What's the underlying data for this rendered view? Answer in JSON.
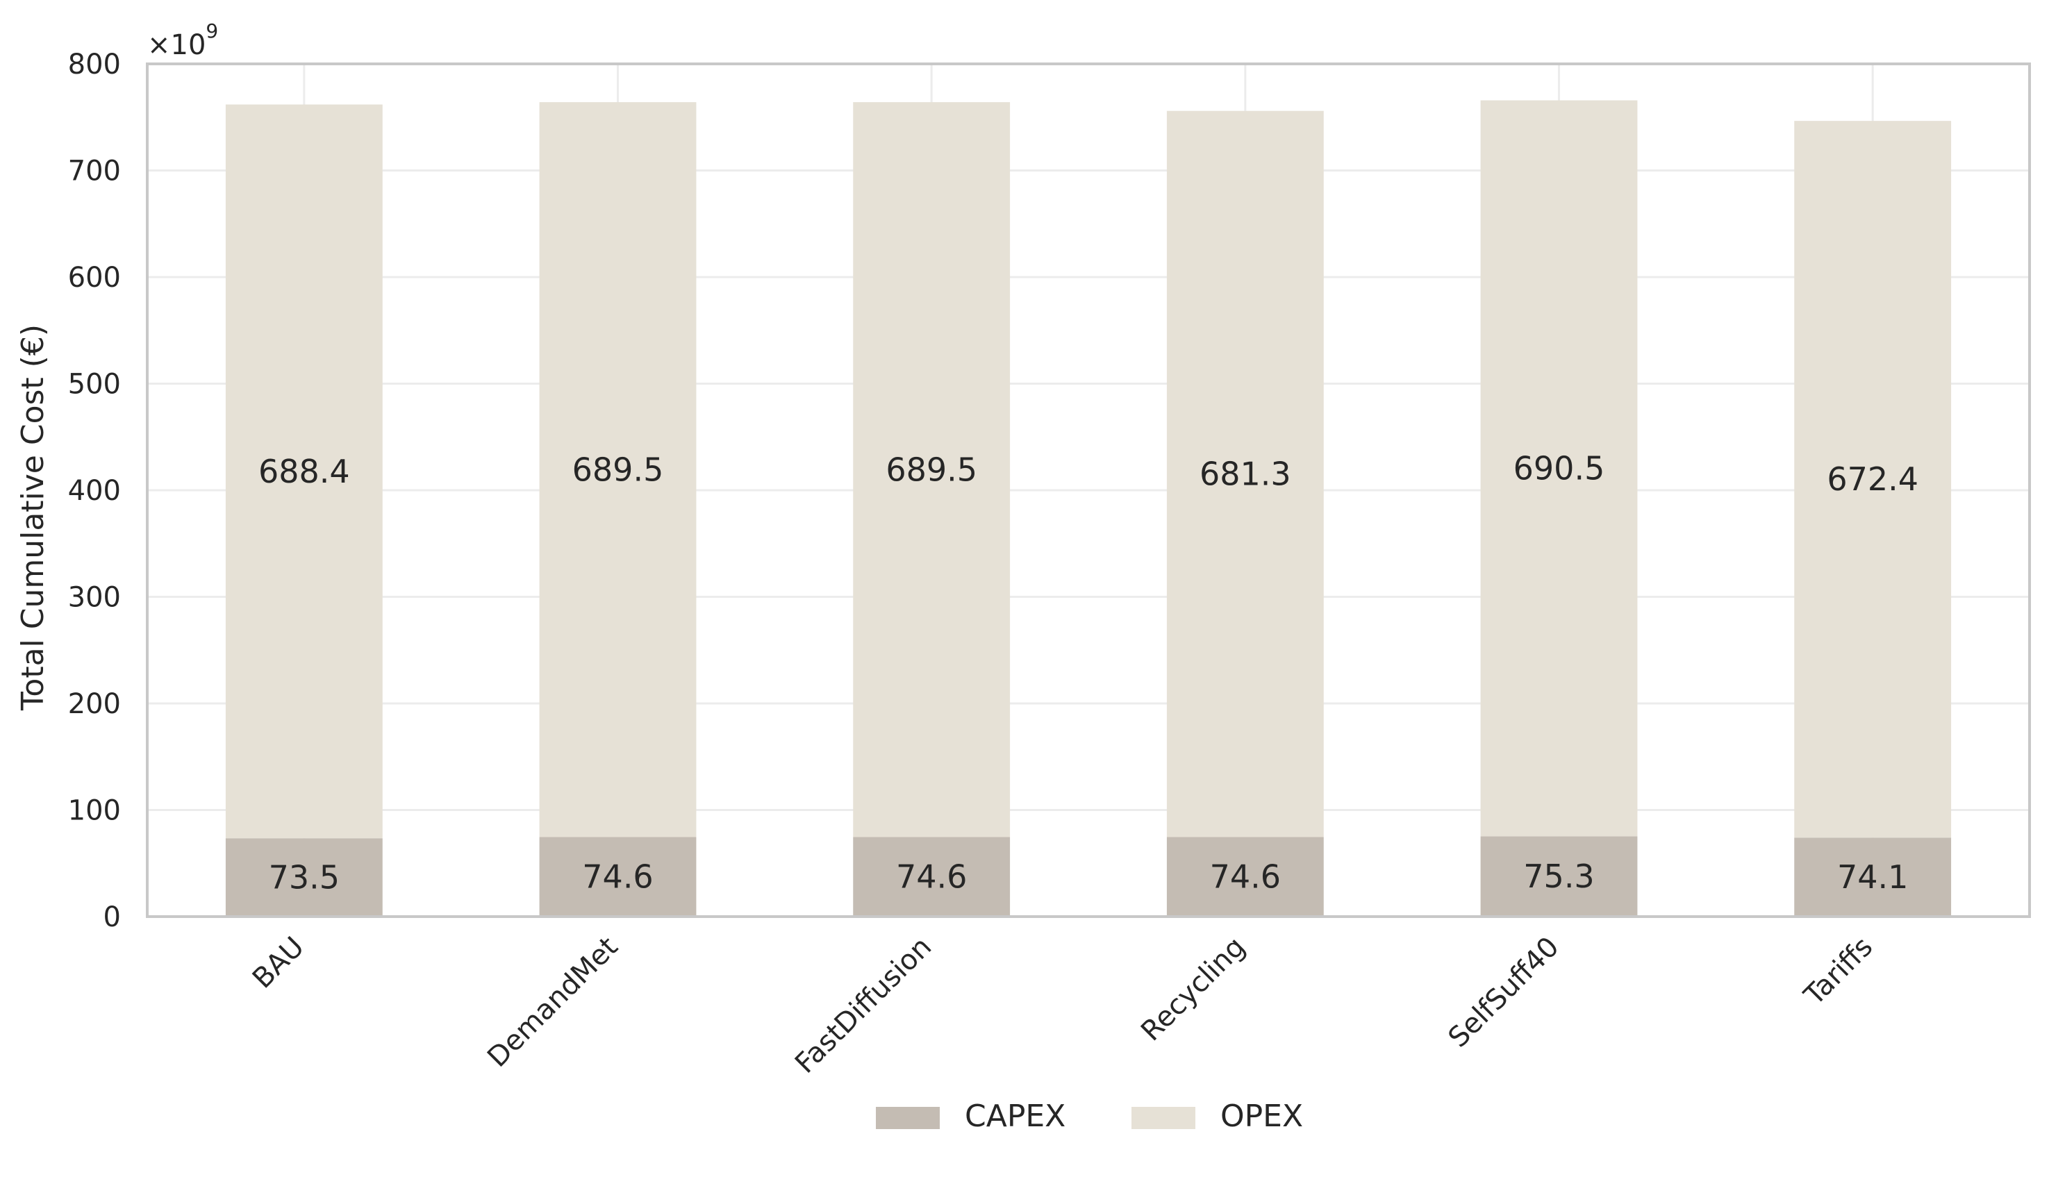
{
  "chart_data": {
    "type": "bar",
    "stacked": true,
    "categories": [
      "BAU",
      "DemandMet",
      "FastDiffusion",
      "Recycling",
      "SelfSuff40",
      "Tariffs"
    ],
    "series": [
      {
        "name": "CAPEX",
        "values": [
          73.5,
          74.6,
          74.6,
          74.6,
          75.3,
          74.1
        ],
        "color": "#c4bcb3"
      },
      {
        "name": "OPEX",
        "values": [
          688.4,
          689.5,
          689.5,
          681.3,
          690.5,
          672.4
        ],
        "color": "#e6e1d6"
      }
    ],
    "ylabel": "Total Cumulative Cost (€)",
    "yscale_label": "×10",
    "yscale_exponent": "9",
    "ylim": [
      0,
      800
    ],
    "yticks": [
      "0",
      "100",
      "200",
      "300",
      "400",
      "500",
      "600",
      "700",
      "800"
    ],
    "grid": true,
    "legend_position": "bottom-center",
    "data_labels": {
      "CAPEX": [
        "73.5",
        "74.6",
        "74.6",
        "74.6",
        "75.3",
        "74.1"
      ],
      "OPEX": [
        "688.4",
        "689.5",
        "689.5",
        "681.3",
        "690.5",
        "672.4"
      ]
    }
  }
}
